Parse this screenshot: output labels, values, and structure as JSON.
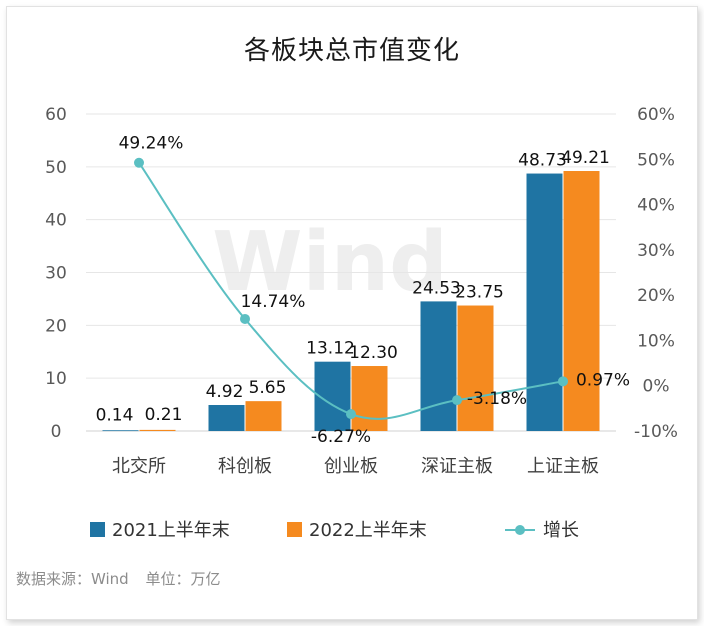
{
  "chart_data": {
    "type": "bar",
    "title": "各板块总市值变化",
    "categories": [
      "北交所",
      "科创板",
      "创业板",
      "深证主板",
      "上证主板"
    ],
    "series": [
      {
        "name": "2021上半年末",
        "type": "bar",
        "axis": "left",
        "color": "#1f74a3",
        "values": [
          0.14,
          4.92,
          13.12,
          24.53,
          48.73
        ],
        "labels": [
          "0.14",
          "4.92",
          "13.12",
          "24.53",
          "48.73"
        ]
      },
      {
        "name": "2022上半年末",
        "type": "bar",
        "axis": "left",
        "color": "#f58a1f",
        "values": [
          0.21,
          5.65,
          12.3,
          23.75,
          49.21
        ],
        "labels": [
          "0.21",
          "5.65",
          "12.30",
          "23.75",
          "49.21"
        ]
      },
      {
        "name": "增长",
        "type": "line",
        "axis": "right",
        "color": "#5bbfc2",
        "values": [
          49.24,
          14.74,
          -6.27,
          -3.18,
          0.97
        ],
        "labels": [
          "49.24%",
          "14.74%",
          "-6.27%",
          "-3.18%",
          "0.97%"
        ]
      }
    ],
    "y_left": {
      "min": 0,
      "max": 60,
      "ticks": [
        "0",
        "10",
        "20",
        "30",
        "40",
        "50",
        "60"
      ]
    },
    "y_right": {
      "min": -10,
      "max": 60,
      "ticks": [
        "-10%",
        "0%",
        "10%",
        "20%",
        "30%",
        "40%",
        "50%",
        "60%"
      ]
    },
    "grid": true,
    "legend_position": "bottom",
    "watermark": "Wind"
  },
  "footer": {
    "source": "数据来源：Wind",
    "unit": "单位：万亿"
  }
}
